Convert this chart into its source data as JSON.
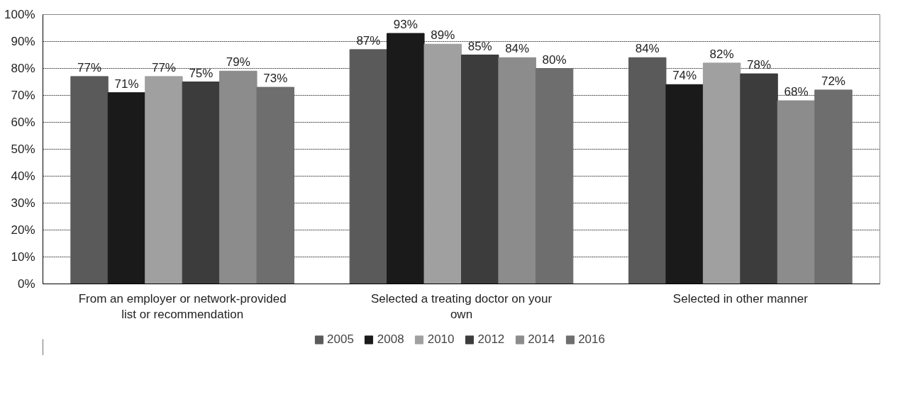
{
  "chart_data": {
    "type": "bar",
    "categories": [
      "From an employer or network-provided list or recommendation",
      "Selected a treating doctor on your own",
      "Selected in other manner"
    ],
    "series": [
      {
        "name": "2005",
        "color": "#5a5a5a",
        "values": [
          77,
          87,
          84
        ],
        "value_labels": [
          "77%",
          "87%",
          "84%"
        ]
      },
      {
        "name": "2008",
        "color": "#1a1a1a",
        "values": [
          71,
          93,
          74
        ],
        "value_labels": [
          "71%",
          "93%",
          "74%"
        ]
      },
      {
        "name": "2010",
        "color": "#a0a0a0",
        "values": [
          77,
          89,
          82
        ],
        "value_labels": [
          "77%",
          "89%",
          "82%"
        ]
      },
      {
        "name": "2012",
        "color": "#3c3c3c",
        "values": [
          75,
          85,
          78
        ],
        "value_labels": [
          "75%",
          "85%",
          "78%"
        ]
      },
      {
        "name": "2014",
        "color": "#8c8c8c",
        "values": [
          79,
          84,
          68
        ],
        "value_labels": [
          "79%",
          "84%",
          "68%"
        ]
      },
      {
        "name": "2016",
        "color": "#6e6e6e",
        "values": [
          73,
          80,
          72
        ],
        "value_labels": [
          "73%",
          "80%",
          "72%"
        ]
      }
    ],
    "ylim": [
      0,
      100
    ],
    "yticks": [
      {
        "value": 0,
        "label": "0%"
      },
      {
        "value": 10,
        "label": "10%"
      },
      {
        "value": 20,
        "label": "20%"
      },
      {
        "value": 30,
        "label": "30%"
      },
      {
        "value": 40,
        "label": "40%"
      },
      {
        "value": 50,
        "label": "50%"
      },
      {
        "value": 60,
        "label": "60%"
      },
      {
        "value": 70,
        "label": "70%"
      },
      {
        "value": 80,
        "label": "80%"
      },
      {
        "value": 90,
        "label": "90%"
      },
      {
        "value": 100,
        "label": "100%"
      }
    ],
    "grid": "y",
    "legend": "bottom"
  }
}
